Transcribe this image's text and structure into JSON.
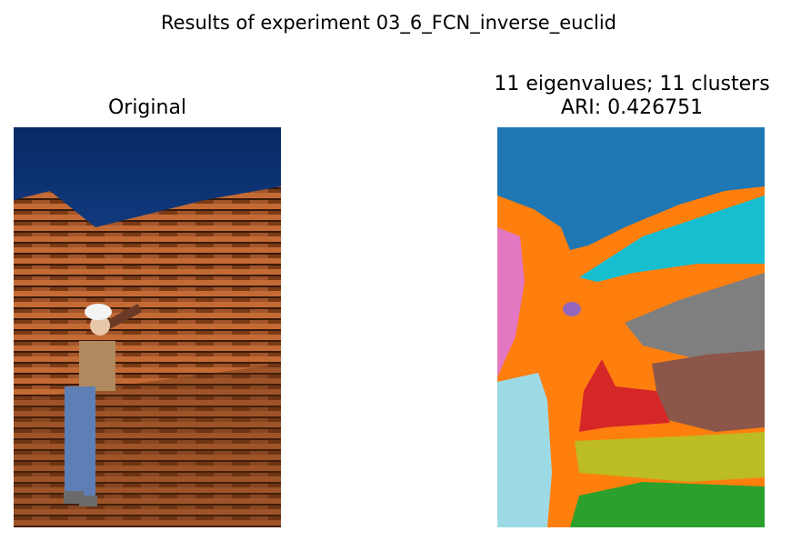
{
  "figure": {
    "suptitle": "Results of experiment 03_6_FCN_inverse_euclid"
  },
  "left_panel": {
    "title": "Original",
    "image": "photo of a worker in a hard hat standing beside stacked lumber under a blue sky"
  },
  "right_panel": {
    "title_line1": "11 eigenvalues; 11 clusters",
    "title_line2": "ARI: 0.426751",
    "image": "segmentation map with 11 colored clusters",
    "cluster_colors": [
      "#1f77b4",
      "#ff7f0e",
      "#2ca02c",
      "#d62728",
      "#9467bd",
      "#8c564b",
      "#e377c2",
      "#7f7f7f",
      "#bcbd22",
      "#17becf",
      "#9edae5"
    ]
  }
}
